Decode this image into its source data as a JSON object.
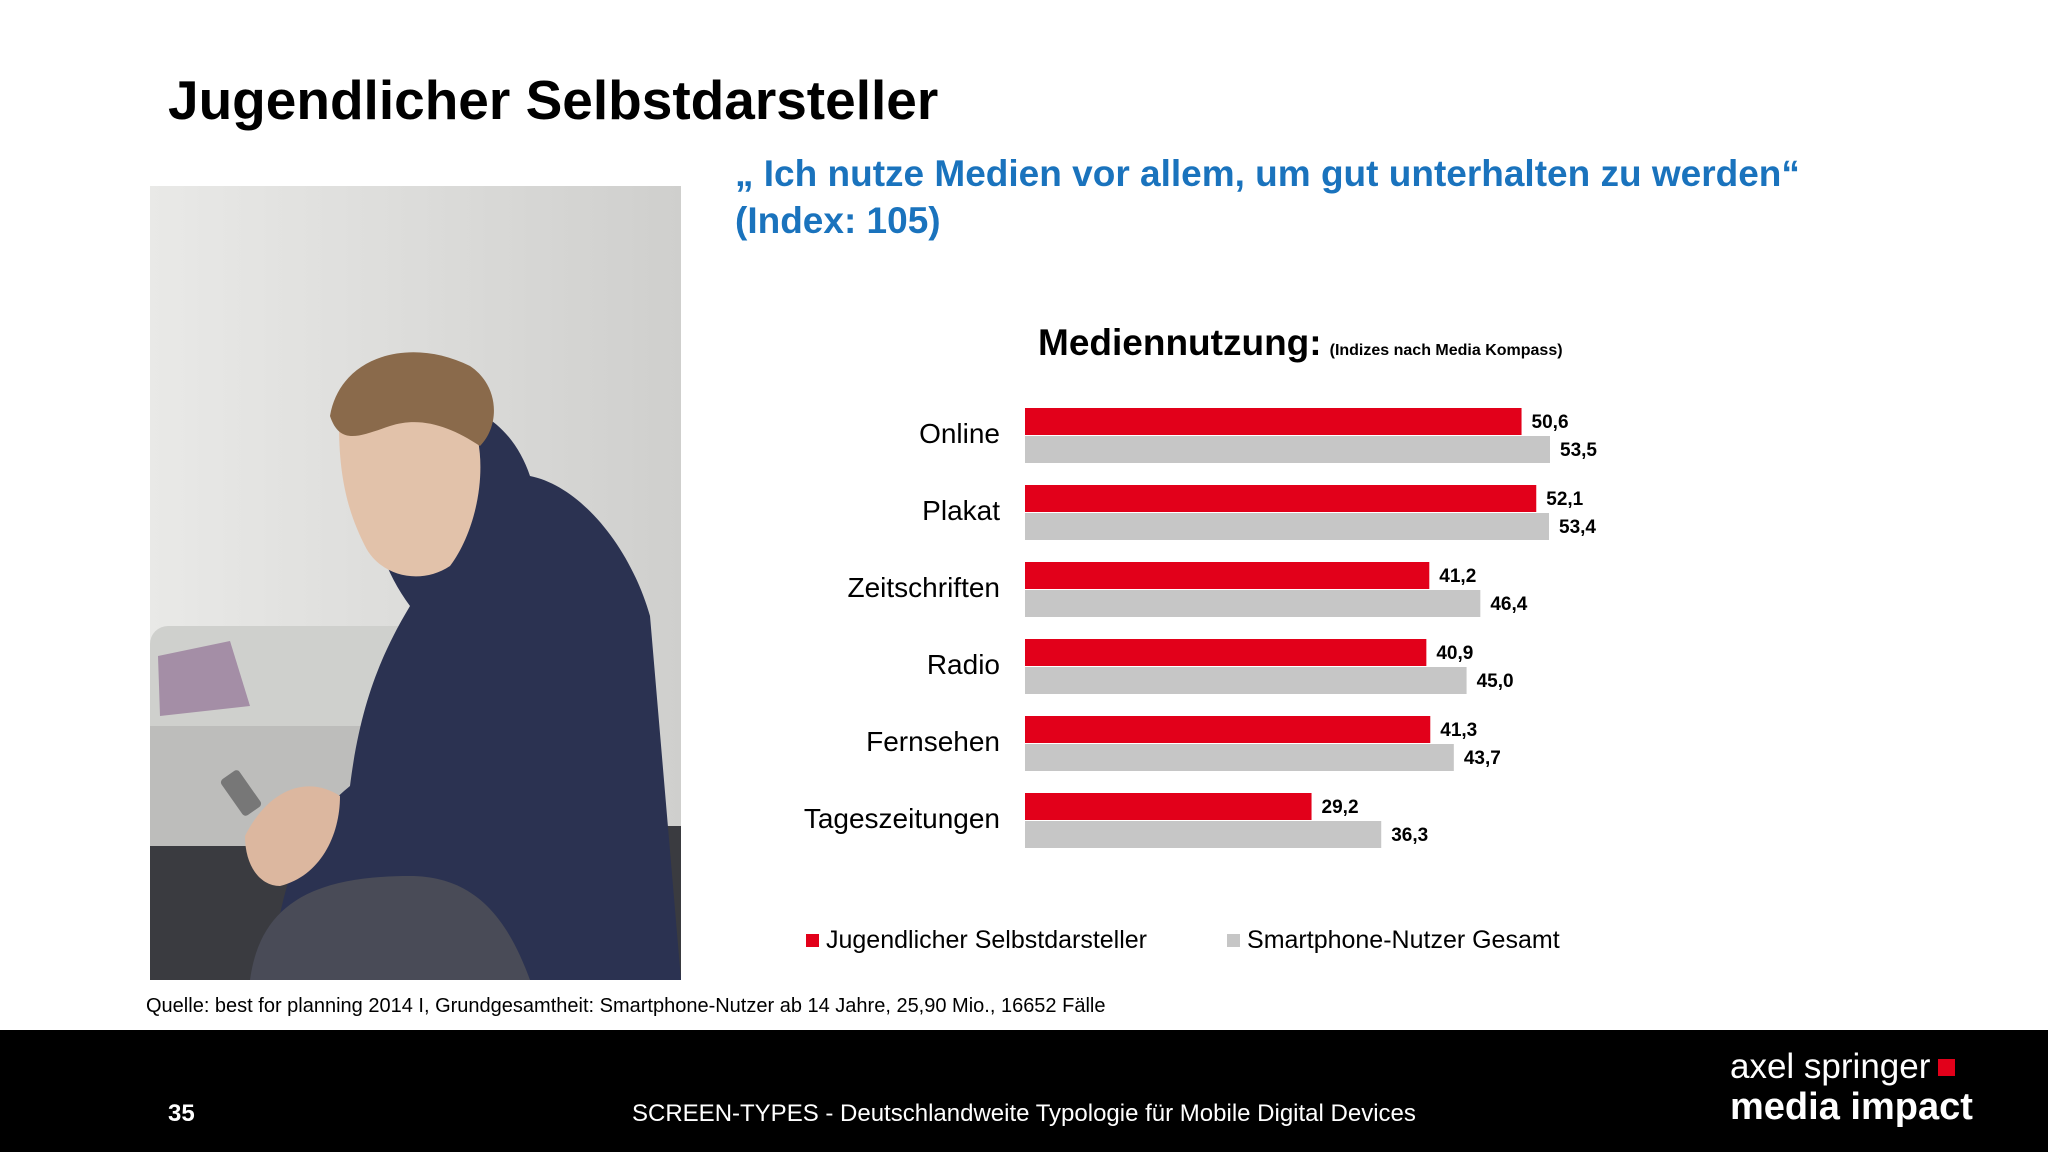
{
  "slide": {
    "title": "Jugendlicher Selbstdarsteller",
    "quote_line1": "„ Ich nutze Medien vor allem, um gut unterhalten zu werden“",
    "quote_line2": "(Index: 105)",
    "source": "Quelle: best for planning 2014 I, Grundgesamtheit: Smartphone-Nutzer ab 14 Jahre, 25,90 Mio., 16652 Fälle"
  },
  "footer": {
    "page_number": "35",
    "title": "SCREEN-TYPES - Deutschlandweite Typologie für Mobile Digital Devices",
    "brand_line1": "axel springer",
    "brand_line2": "media impact"
  },
  "colors": {
    "accent_red": "#e2001a",
    "grey_bar": "#c6c6c6",
    "quote_blue": "#1a73bd"
  },
  "chart_data": {
    "type": "bar",
    "orientation": "horizontal",
    "title": "Mediennutzung:",
    "subtitle": "(Indizes nach Media Kompass)",
    "categories": [
      "Online",
      "Plakat",
      "Zeitschriften",
      "Radio",
      "Fernsehen",
      "Tageszeitungen"
    ],
    "series": [
      {
        "name": "Jugendlicher Selbstdarsteller",
        "color": "#e2001a",
        "values": [
          50.6,
          52.1,
          41.2,
          40.9,
          41.3,
          29.2
        ],
        "labels": [
          "50,6",
          "52,1",
          "41,2",
          "40,9",
          "41,3",
          "29,2"
        ]
      },
      {
        "name": "Smartphone-Nutzer Gesamt",
        "color": "#c6c6c6",
        "values": [
          53.5,
          53.4,
          46.4,
          45.0,
          43.7,
          36.3
        ],
        "labels": [
          "53,5",
          "53,4",
          "46,4",
          "45,0",
          "43,7",
          "36,3"
        ]
      }
    ],
    "xlim": [
      0,
      53.5
    ],
    "legend_position": "bottom",
    "grid": false
  }
}
